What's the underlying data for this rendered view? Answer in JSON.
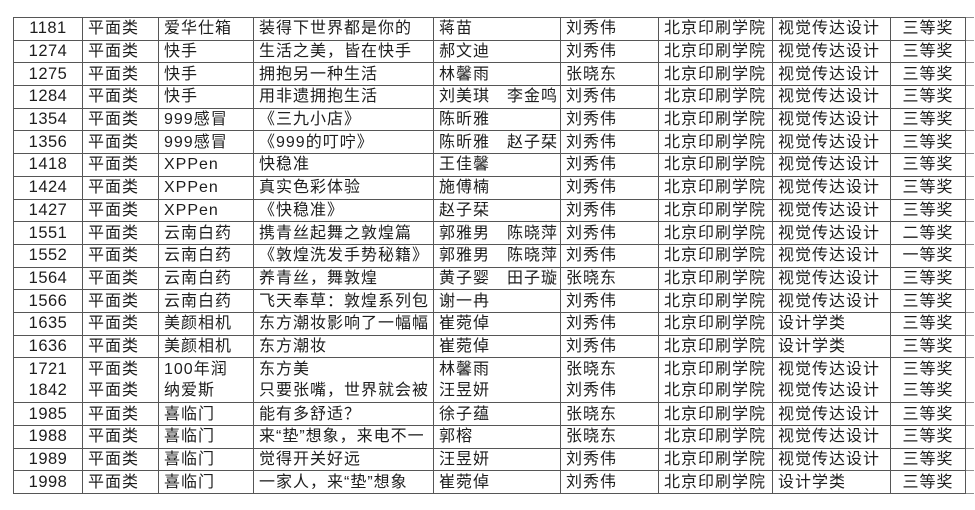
{
  "colors": {
    "background": "#ffffff",
    "grid_line": "#565656",
    "text": "#1d1d1d"
  },
  "table": {
    "rows": [
      {
        "id": "1181",
        "category": "平面类",
        "brand": "爱华仕箱",
        "title": "装得下世界都是你的",
        "authors": "蒋苗",
        "teacher": "刘秀伟",
        "school": "北京印刷学院",
        "major": "视觉传达设计",
        "award": "三等奖"
      },
      {
        "id": "1274",
        "category": "平面类",
        "brand": "快手",
        "title": "生活之美，皆在快手",
        "authors": "郝文迪",
        "teacher": "刘秀伟",
        "school": "北京印刷学院",
        "major": "视觉传达设计",
        "award": "三等奖"
      },
      {
        "id": "1275",
        "category": "平面类",
        "brand": "快手",
        "title": "拥抱另一种生活",
        "authors": "林馨雨",
        "teacher": "张晓东",
        "school": "北京印刷学院",
        "major": "视觉传达设计",
        "award": "三等奖"
      },
      {
        "id": "1284",
        "category": "平面类",
        "brand": "快手",
        "title": "用非遗拥抱生活",
        "authors": "刘美琪　李金鸣",
        "teacher": "刘秀伟",
        "school": "北京印刷学院",
        "major": "视觉传达设计",
        "award": "三等奖"
      },
      {
        "id": "1354",
        "category": "平面类",
        "brand": "999感冒",
        "title": "《三九小店》",
        "authors": "陈昕雅",
        "teacher": "刘秀伟",
        "school": "北京印刷学院",
        "major": "视觉传达设计",
        "award": "三等奖"
      },
      {
        "id": "1356",
        "category": "平面类",
        "brand": "999感冒",
        "title": "《999的叮咛》",
        "authors": "陈昕雅　赵子栞",
        "teacher": "刘秀伟",
        "school": "北京印刷学院",
        "major": "视觉传达设计",
        "award": "三等奖"
      },
      {
        "id": "1418",
        "category": "平面类",
        "brand": "XPPen",
        "title": "快稳准",
        "authors": "王佳馨",
        "teacher": "刘秀伟",
        "school": "北京印刷学院",
        "major": "视觉传达设计",
        "award": "三等奖"
      },
      {
        "id": "1424",
        "category": "平面类",
        "brand": "XPPen",
        "title": "真实色彩体验",
        "authors": "施傅楠",
        "teacher": "刘秀伟",
        "school": "北京印刷学院",
        "major": "视觉传达设计",
        "award": "三等奖"
      },
      {
        "id": "1427",
        "category": "平面类",
        "brand": "XPPen",
        "title": "《快稳准》",
        "authors": "赵子栞",
        "teacher": "刘秀伟",
        "school": "北京印刷学院",
        "major": "视觉传达设计",
        "award": "三等奖"
      },
      {
        "id": "1551",
        "category": "平面类",
        "brand": "云南白药",
        "title": "携青丝起舞之敦煌篇",
        "authors": "郭雅男　陈晓萍",
        "teacher": "刘秀伟",
        "school": "北京印刷学院",
        "major": "视觉传达设计",
        "award": "二等奖"
      },
      {
        "id": "1552",
        "category": "平面类",
        "brand": "云南白药",
        "title": "《敦煌洗发手势秘籍》",
        "authors": "郭雅男　陈晓萍",
        "teacher": "刘秀伟",
        "school": "北京印刷学院",
        "major": "视觉传达设计",
        "award": "一等奖"
      },
      {
        "id": "1564",
        "category": "平面类",
        "brand": "云南白药",
        "title": "养青丝，舞敦煌",
        "authors": "黄子婴　田子璇",
        "teacher": "张晓东",
        "school": "北京印刷学院",
        "major": "视觉传达设计",
        "award": "三等奖"
      },
      {
        "id": "1566",
        "category": "平面类",
        "brand": "云南白药",
        "title": "飞天奉草：敦煌系列包",
        "authors": "谢一冉",
        "teacher": "刘秀伟",
        "school": "北京印刷学院",
        "major": "视觉传达设计",
        "award": "三等奖"
      },
      {
        "id": "1635",
        "category": "平面类",
        "brand": "美颜相机",
        "title": "东方潮妆影响了一幅幅",
        "authors": "崔菀倬",
        "teacher": "刘秀伟",
        "school": "北京印刷学院",
        "major": "设计学类",
        "award": "三等奖"
      },
      {
        "id": "1636",
        "category": "平面类",
        "brand": "美颜相机",
        "title": "东方潮妆",
        "authors": "崔菀倬",
        "teacher": "刘秀伟",
        "school": "北京印刷学院",
        "major": "设计学类",
        "award": "三等奖"
      },
      {
        "entries": [
          {
            "id": "1721",
            "category": "平面类",
            "brand": "100年润",
            "title": "东方美",
            "authors": "林馨雨",
            "teacher": "张晓东",
            "school": "北京印刷学院",
            "major": "视觉传达设计",
            "award": "三等奖"
          },
          {
            "id": "1842",
            "category": "平面类",
            "brand": "纳爱斯",
            "title": "只要张嘴，世界就会被",
            "authors": "汪昱妍",
            "teacher": "刘秀伟",
            "school": "北京印刷学院",
            "major": "视觉传达设计",
            "award": "三等奖"
          }
        ]
      },
      {
        "id": "1985",
        "category": "平面类",
        "brand": "喜临门",
        "title": "能有多舒适？",
        "authors": "徐子蕴",
        "teacher": "张晓东",
        "school": "北京印刷学院",
        "major": "视觉传达设计",
        "award": "三等奖"
      },
      {
        "id": "1988",
        "category": "平面类",
        "brand": "喜临门",
        "title": "来“垫”想象，来电不一",
        "authors": "郭榕",
        "teacher": "张晓东",
        "school": "北京印刷学院",
        "major": "视觉传达设计",
        "award": "三等奖"
      },
      {
        "id": "1989",
        "category": "平面类",
        "brand": "喜临门",
        "title": "觉得开关好远",
        "authors": "汪昱妍",
        "teacher": "刘秀伟",
        "school": "北京印刷学院",
        "major": "视觉传达设计",
        "award": "三等奖"
      },
      {
        "id": "1998",
        "category": "平面类",
        "brand": "喜临门",
        "title": "一家人，来“垫”想象",
        "authors": "崔菀倬",
        "teacher": "刘秀伟",
        "school": "北京印刷学院",
        "major": "设计学类",
        "award": "三等奖"
      }
    ]
  }
}
